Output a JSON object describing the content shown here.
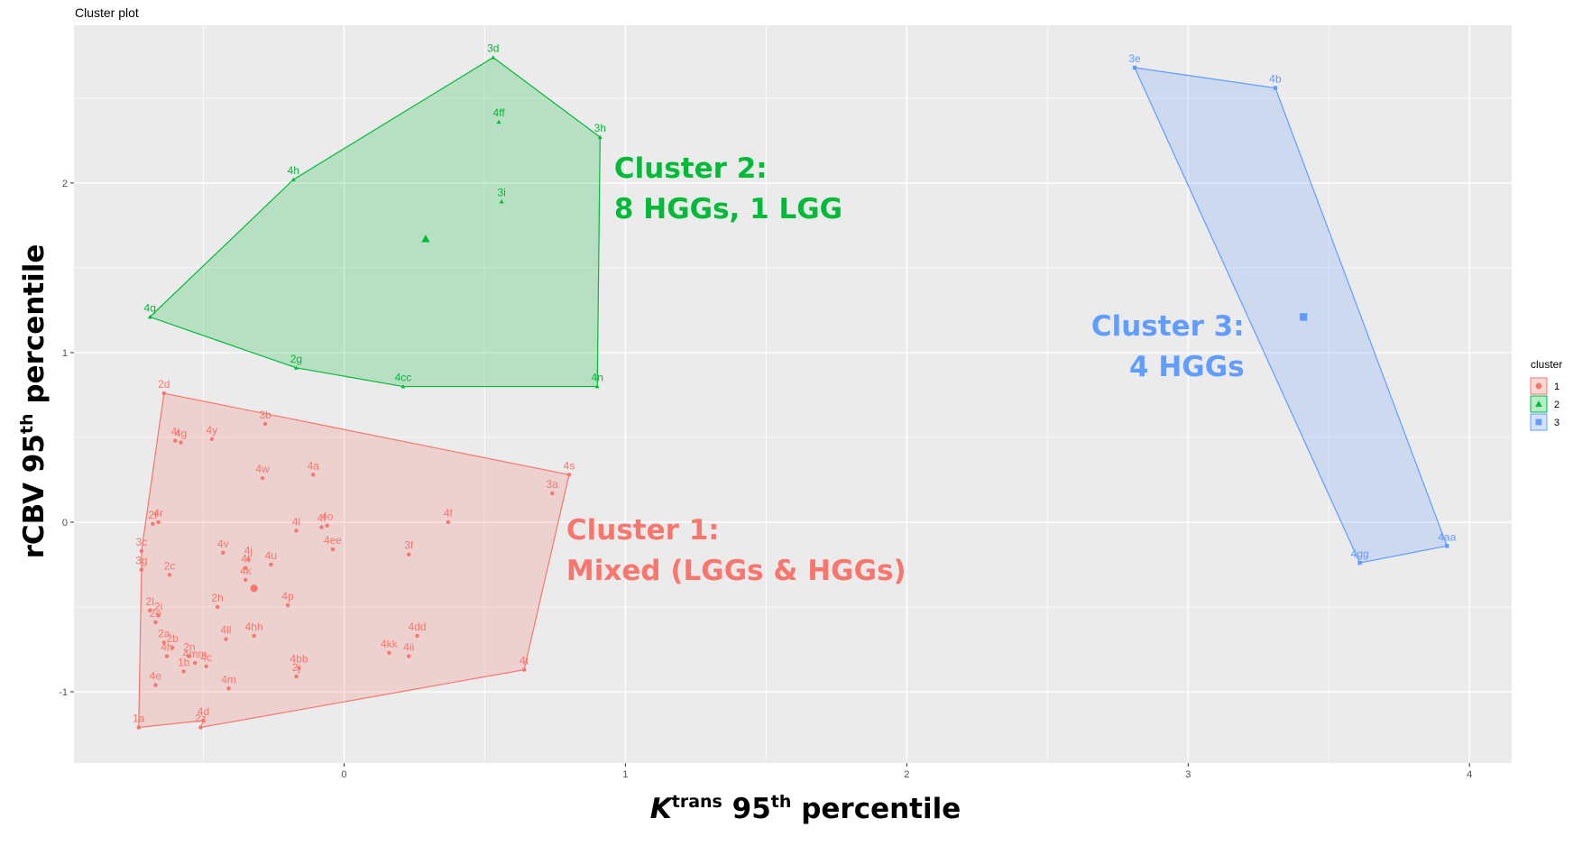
{
  "chart_data": {
    "type": "scatter",
    "title": "Cluster plot",
    "xlabel_main": "K",
    "xlabel_sup": "trans",
    "xlabel_rest": " 95",
    "xlabel_sup2": "th",
    "xlabel_end": " percentile",
    "ylabel_main": "rCBV 95",
    "ylabel_sup": "th",
    "ylabel_end": " percentile",
    "xlim": [
      -0.96,
      4.15
    ],
    "ylim": [
      -1.42,
      2.93
    ],
    "x_ticks": [
      0,
      1,
      2,
      3,
      4
    ],
    "x_tick_labels": [
      "0",
      "1",
      "2",
      "3",
      "4"
    ],
    "y_ticks": [
      -1,
      0,
      1,
      2
    ],
    "y_tick_labels": [
      "-1",
      "0",
      "1",
      "2"
    ],
    "grid": true,
    "legend": {
      "title": "cluster",
      "position": "right",
      "entries": [
        {
          "label": "1",
          "color": "#F8766D",
          "shape": "circle"
        },
        {
          "label": "2",
          "color": "#00BA38",
          "shape": "triangle"
        },
        {
          "label": "3",
          "color": "#619CFF",
          "shape": "square"
        }
      ]
    },
    "series": [
      {
        "name": "1",
        "color": "#F8766D",
        "shape": "circle",
        "hull": [
          "2d",
          "4s",
          "4t",
          "2z",
          "4d",
          "1a",
          "3g",
          "3c"
        ],
        "centroid": [
          -0.32,
          -0.39
        ],
        "points": [
          {
            "label": "2d",
            "x": -0.64,
            "y": 0.76
          },
          {
            "label": "3b",
            "x": -0.28,
            "y": 0.58
          },
          {
            "label": "4y",
            "x": -0.47,
            "y": 0.49
          },
          {
            "label": "4i",
            "x": -0.6,
            "y": 0.48
          },
          {
            "label": "4g",
            "x": -0.58,
            "y": 0.47
          },
          {
            "label": "4w",
            "x": -0.29,
            "y": 0.26
          },
          {
            "label": "4a",
            "x": -0.11,
            "y": 0.28
          },
          {
            "label": "4s",
            "x": 0.8,
            "y": 0.28
          },
          {
            "label": "3a",
            "x": 0.74,
            "y": 0.17
          },
          {
            "label": "2f",
            "x": -0.68,
            "y": -0.01
          },
          {
            "label": "4r",
            "x": -0.66,
            "y": 0.0
          },
          {
            "label": "4l",
            "x": -0.17,
            "y": -0.05
          },
          {
            "label": "4f",
            "x": -0.08,
            "y": -0.03
          },
          {
            "label": "4o",
            "x": -0.06,
            "y": -0.02
          },
          {
            "label": "4f",
            "x": 0.37,
            "y": 0.0
          },
          {
            "label": "3c",
            "x": -0.72,
            "y": -0.17
          },
          {
            "label": "3g",
            "x": -0.72,
            "y": -0.28
          },
          {
            "label": "2c",
            "x": -0.62,
            "y": -0.31
          },
          {
            "label": "4v",
            "x": -0.43,
            "y": -0.18
          },
          {
            "label": "4j",
            "x": -0.34,
            "y": -0.22
          },
          {
            "label": "4t",
            "x": -0.35,
            "y": -0.27
          },
          {
            "label": "4k",
            "x": -0.35,
            "y": -0.34
          },
          {
            "label": "4u",
            "x": -0.26,
            "y": -0.25
          },
          {
            "label": "4ee",
            "x": -0.04,
            "y": -0.16
          },
          {
            "label": "3f",
            "x": 0.23,
            "y": -0.19
          },
          {
            "label": "2h",
            "x": -0.45,
            "y": -0.5
          },
          {
            "label": "4p",
            "x": -0.2,
            "y": -0.49
          },
          {
            "label": "2l",
            "x": -0.69,
            "y": -0.52
          },
          {
            "label": "2i",
            "x": -0.66,
            "y": -0.55
          },
          {
            "label": "2e",
            "x": -0.67,
            "y": -0.59
          },
          {
            "label": "4ll",
            "x": -0.42,
            "y": -0.69
          },
          {
            "label": "4hh",
            "x": -0.32,
            "y": -0.67
          },
          {
            "label": "4dd",
            "x": 0.26,
            "y": -0.67
          },
          {
            "label": "2a",
            "x": -0.64,
            "y": -0.71
          },
          {
            "label": "2b",
            "x": -0.61,
            "y": -0.74
          },
          {
            "label": "4h",
            "x": -0.63,
            "y": -0.79
          },
          {
            "label": "2n",
            "x": -0.55,
            "y": -0.79
          },
          {
            "label": "4kk",
            "x": 0.16,
            "y": -0.77
          },
          {
            "label": "4ii",
            "x": 0.23,
            "y": -0.79
          },
          {
            "label": "4mm",
            "x": -0.53,
            "y": -0.83
          },
          {
            "label": "4c",
            "x": -0.49,
            "y": -0.85
          },
          {
            "label": "1b",
            "x": -0.57,
            "y": -0.88
          },
          {
            "label": "4bb",
            "x": -0.16,
            "y": -0.86
          },
          {
            "label": "2j",
            "x": -0.17,
            "y": -0.91
          },
          {
            "label": "4t",
            "x": 0.64,
            "y": -0.87
          },
          {
            "label": "4e",
            "x": -0.67,
            "y": -0.96
          },
          {
            "label": "4m",
            "x": -0.41,
            "y": -0.98
          },
          {
            "label": "1a",
            "x": -0.73,
            "y": -1.21
          },
          {
            "label": "4d",
            "x": -0.5,
            "y": -1.17
          },
          {
            "label": "2z",
            "x": -0.51,
            "y": -1.21
          }
        ]
      },
      {
        "name": "2",
        "color": "#00BA38",
        "shape": "triangle",
        "hull": [
          "3d",
          "3h",
          "4n",
          "4cc",
          "2g",
          "4q",
          "4h"
        ],
        "centroid": [
          0.29,
          1.67
        ],
        "points": [
          {
            "label": "3d",
            "x": 0.53,
            "y": 2.74
          },
          {
            "label": "4ff",
            "x": 0.55,
            "y": 2.36
          },
          {
            "label": "3h",
            "x": 0.91,
            "y": 2.27
          },
          {
            "label": "4h",
            "x": -0.18,
            "y": 2.02
          },
          {
            "label": "3i",
            "x": 0.56,
            "y": 1.89
          },
          {
            "label": "4q",
            "x": -0.69,
            "y": 1.21
          },
          {
            "label": "2g",
            "x": -0.17,
            "y": 0.91
          },
          {
            "label": "4cc",
            "x": 0.21,
            "y": 0.8
          },
          {
            "label": "4n",
            "x": 0.9,
            "y": 0.8
          }
        ]
      },
      {
        "name": "3",
        "color": "#619CFF",
        "shape": "square",
        "hull": [
          "3e",
          "4b",
          "4aa",
          "4gg"
        ],
        "centroid": [
          3.41,
          1.21
        ],
        "points": [
          {
            "label": "3e",
            "x": 2.81,
            "y": 2.68
          },
          {
            "label": "4b",
            "x": 3.31,
            "y": 2.56
          },
          {
            "label": "4gg",
            "x": 3.61,
            "y": -0.24
          },
          {
            "label": "4aa",
            "x": 3.92,
            "y": -0.14
          }
        ]
      }
    ],
    "annotations": [
      {
        "cluster": "2",
        "color": "#00BA38",
        "lines": [
          "Cluster 2:",
          "8 HGGs, 1 LGG"
        ]
      },
      {
        "cluster": "1",
        "color": "#F8766D",
        "lines": [
          "Cluster 1:",
          "Mixed (LGGs & HGGs)"
        ]
      },
      {
        "cluster": "3",
        "color": "#619CFF",
        "lines": [
          "Cluster 3:",
          "4 HGGs"
        ]
      }
    ]
  }
}
